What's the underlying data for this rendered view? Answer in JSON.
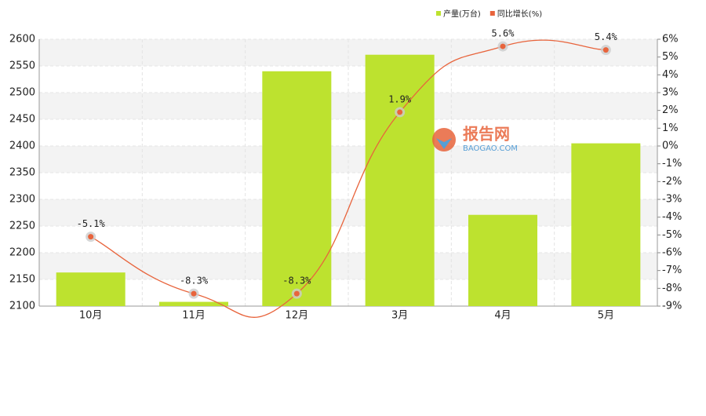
{
  "chart_data": {
    "type": "bar",
    "categories": [
      "10月",
      "11月",
      "12月",
      "3月",
      "4月",
      "5月"
    ],
    "series": [
      {
        "name": "产量(万台)",
        "type": "bar",
        "color": "#bde22f",
        "values": [
          2163,
          2108,
          2540,
          2571,
          2271,
          2405
        ]
      },
      {
        "name": "同比增长(%)",
        "type": "line",
        "axis": "y2",
        "color": "#e8643c",
        "values": [
          -5.1,
          -8.3,
          -8.3,
          1.9,
          5.6,
          5.4
        ],
        "value_labels": [
          "-5.1%",
          "-8.3%",
          "-8.3%",
          "1.9%",
          "5.6%",
          "5.4%"
        ]
      }
    ],
    "ylim": [
      2100,
      2600
    ],
    "yticks": [
      2100,
      2150,
      2200,
      2250,
      2300,
      2350,
      2400,
      2450,
      2500,
      2550,
      2600
    ],
    "y2lim": [
      -9,
      6
    ],
    "y2ticks": [
      {
        "value": -9,
        "label": "-9%"
      },
      {
        "value": -8,
        "label": "-8%"
      },
      {
        "value": -7,
        "label": "-7%"
      },
      {
        "value": -6,
        "label": "-6%"
      },
      {
        "value": -5,
        "label": "-5%"
      },
      {
        "value": -4,
        "label": "-4%"
      },
      {
        "value": -3,
        "label": "-3%"
      },
      {
        "value": -2,
        "label": "-2%"
      },
      {
        "value": -1,
        "label": "-1%"
      },
      {
        "value": 0,
        "label": "0%"
      },
      {
        "value": 1,
        "label": "1%"
      },
      {
        "value": 2,
        "label": "2%"
      },
      {
        "value": 3,
        "label": "3%"
      },
      {
        "value": 4,
        "label": "4%"
      },
      {
        "value": 5,
        "label": "5%"
      },
      {
        "value": 6,
        "label": "6%"
      }
    ],
    "grid": true,
    "legend": "top-right",
    "watermark": {
      "name": "报告网",
      "url": "BAOGAO.COM"
    }
  }
}
